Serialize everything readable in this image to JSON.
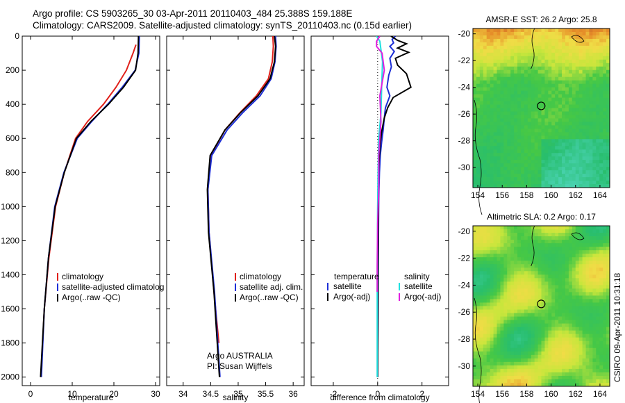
{
  "header": {
    "line1": "Argo profile: CS 5903265_30 03-Apr-2011 20110403_484 25.388S 159.188E",
    "line2": "Climatology: CARS2009. Satellite-adjusted climatology: synTS_20110403.nc (0.15d earlier)"
  },
  "colors": {
    "climatology": "#e0201a",
    "satellite": "#1d2fd6",
    "argo": "#000000",
    "cyan": "#20e0e0",
    "magenta": "#e020e0"
  },
  "chart_data": [
    {
      "type": "line",
      "name": "temperature-profile",
      "xlabel": "temperature",
      "ylabel": "",
      "xlim": [
        -2,
        31
      ],
      "ylim": [
        0,
        2050
      ],
      "y_inverted": true,
      "xticks": [
        "0",
        "10",
        "20",
        "30"
      ],
      "yticks": [
        "0",
        "200",
        "400",
        "600",
        "800",
        "1000",
        "1200",
        "1400",
        "1600",
        "1800",
        "2000"
      ],
      "legend": [
        "climatology",
        "satellite-adjusted climatolog",
        "Argo(..raw -QC)"
      ],
      "legend_position": "bottom-center",
      "series": [
        {
          "name": "climatology",
          "color": "#e0201a",
          "x": [
            25.3,
            24.6,
            23.0,
            20.5,
            17.5,
            13.7,
            10.8,
            8.1,
            6.0,
            4.4,
            3.3,
            2.5
          ],
          "y": [
            50,
            100,
            200,
            300,
            400,
            500,
            600,
            800,
            1000,
            1300,
            1600,
            2000
          ]
        },
        {
          "name": "satellite-adjusted climatolog",
          "color": "#1d2fd6",
          "x": [
            26.1,
            26.0,
            25.1,
            22.0,
            18.5,
            14.7,
            11.2,
            8.0,
            5.8,
            4.3,
            3.3,
            2.6
          ],
          "y": [
            0,
            100,
            200,
            300,
            400,
            500,
            600,
            800,
            1000,
            1300,
            1600,
            2000
          ]
        },
        {
          "name": "Argo(..raw -QC)",
          "color": "#000000",
          "x": [
            25.9,
            25.8,
            25.2,
            22.3,
            18.7,
            14.5,
            11.0,
            8.1,
            5.9,
            4.3,
            3.3,
            2.4
          ],
          "y": [
            0,
            100,
            200,
            300,
            400,
            500,
            600,
            800,
            1000,
            1300,
            1600,
            2000
          ]
        }
      ]
    },
    {
      "type": "line",
      "name": "salinity-profile",
      "xlabel": "salinity",
      "ylabel": "",
      "xlim": [
        33.7,
        36.2
      ],
      "ylim": [
        0,
        2050
      ],
      "y_inverted": true,
      "xticks": [
        "34",
        "34.5",
        "35",
        "35.5",
        "36"
      ],
      "legend": [
        "climatology",
        "satellite adj. clim.",
        "Argo(..raw -QC)"
      ],
      "legend_position": "bottom-right",
      "annotation_lines": [
        "Argo AUSTRALIA",
        "PI: Susan Wijffels"
      ],
      "series": [
        {
          "name": "climatology",
          "color": "#e0201a",
          "x": [
            35.63,
            35.64,
            35.62,
            35.55,
            35.33,
            35.03,
            34.76,
            34.5,
            34.45,
            34.47,
            34.56,
            34.65
          ],
          "y": [
            0,
            60,
            150,
            250,
            350,
            450,
            550,
            700,
            900,
            1150,
            1500,
            1800
          ]
        },
        {
          "name": "satellite adj. clim.",
          "color": "#1d2fd6",
          "x": [
            35.68,
            35.69,
            35.67,
            35.6,
            35.4,
            35.08,
            34.8,
            34.52,
            34.45,
            34.47,
            34.57,
            34.67
          ],
          "y": [
            0,
            60,
            150,
            250,
            350,
            450,
            550,
            700,
            900,
            1150,
            1500,
            2000
          ]
        },
        {
          "name": "Argo(..raw -QC)",
          "color": "#000000",
          "x": [
            35.66,
            35.68,
            35.66,
            35.58,
            35.36,
            35.04,
            34.76,
            34.49,
            34.44,
            34.46,
            34.56,
            34.66
          ],
          "y": [
            0,
            60,
            150,
            250,
            350,
            450,
            550,
            700,
            900,
            1150,
            1500,
            2000
          ]
        }
      ]
    },
    {
      "type": "line",
      "name": "difference-profile",
      "xlabel": "difference from climatology",
      "ylabel": "",
      "xlim": [
        -3,
        3.2
      ],
      "ylim": [
        0,
        2050
      ],
      "y_inverted": true,
      "xticks": [
        "-2",
        "0",
        "2"
      ],
      "legend_groups": [
        {
          "heading": "temperature",
          "items": [
            "satellite",
            "Argo(-adj)"
          ]
        },
        {
          "heading": "salinity",
          "items": [
            "satellite",
            "Argo(-adj)"
          ]
        }
      ],
      "legend_position": "bottom",
      "series": [
        {
          "name": "temperature satellite",
          "color": "#1d2fd6",
          "x": [
            0.8,
            0.65,
            0.72,
            0.55,
            0.75,
            0.55,
            0.62,
            0.5,
            0.42,
            0.55,
            0.35,
            0.3,
            0.25,
            0.18,
            0.12,
            0.08,
            0.05,
            0.04,
            0.03,
            0.02,
            0.0
          ],
          "y": [
            0,
            20,
            40,
            60,
            90,
            130,
            180,
            230,
            300,
            350,
            420,
            480,
            550,
            620,
            700,
            800,
            950,
            1100,
            1300,
            1600,
            2000
          ]
        },
        {
          "name": "temperature Argo(-adj)",
          "color": "#000000",
          "x": [
            0.6,
            0.9,
            1.3,
            0.9,
            1.4,
            0.8,
            0.9,
            1.3,
            1.5,
            0.7,
            0.45,
            0.3,
            0.18,
            0.1,
            0.06,
            0.04,
            0.03,
            0.02,
            0.0
          ],
          "y": [
            0,
            25,
            45,
            70,
            95,
            130,
            170,
            220,
            300,
            360,
            420,
            480,
            560,
            650,
            750,
            900,
            1100,
            1400,
            2000
          ]
        },
        {
          "name": "salinity satellite",
          "color": "#20e0e0",
          "x": [
            -0.05,
            0.1,
            0.15,
            0.22,
            0.18,
            0.15,
            0.05,
            0.02,
            0.0,
            -0.01,
            -0.02,
            -0.02,
            -0.02
          ],
          "y": [
            0,
            30,
            80,
            150,
            300,
            450,
            600,
            800,
            1000,
            1200,
            1500,
            1800,
            2000
          ]
        },
        {
          "name": "salinity Argo(-adj)",
          "color": "#e020e0",
          "x": [
            0.1,
            -0.05,
            -0.05,
            0.2,
            0.3,
            0.1,
            0.15,
            0.05,
            0.05,
            0.0,
            -0.02,
            -0.02
          ],
          "y": [
            0,
            30,
            60,
            100,
            200,
            350,
            500,
            700,
            900,
            1100,
            1350,
            1500
          ]
        }
      ]
    },
    {
      "type": "heatmap",
      "name": "sst-map",
      "title": "AMSR-E SST: 26.2 Argo: 25.8",
      "xlim": [
        153.6,
        164.8
      ],
      "ylim": [
        -31.5,
        -19.6
      ],
      "xticks": [
        "154",
        "156",
        "158",
        "160",
        "162",
        "164"
      ],
      "yticks": [
        "-20",
        "-22",
        "-24",
        "-26",
        "-28",
        "-30"
      ],
      "marker": {
        "lon": 159.19,
        "lat": -25.39
      }
    },
    {
      "type": "heatmap",
      "name": "sla-map",
      "title": "Altimetric SLA: 0.2 Argo: 0.17",
      "xlim": [
        153.6,
        164.8
      ],
      "ylim": [
        -31.5,
        -19.6
      ],
      "xticks": [
        "154",
        "156",
        "158",
        "160",
        "162",
        "164"
      ],
      "yticks": [
        "-20",
        "-22",
        "-24",
        "-26",
        "-28",
        "-30"
      ],
      "marker": {
        "lon": 159.19,
        "lat": -25.39
      },
      "side_label": "CSIRO 09-Apr-2011 10:31:18"
    }
  ]
}
